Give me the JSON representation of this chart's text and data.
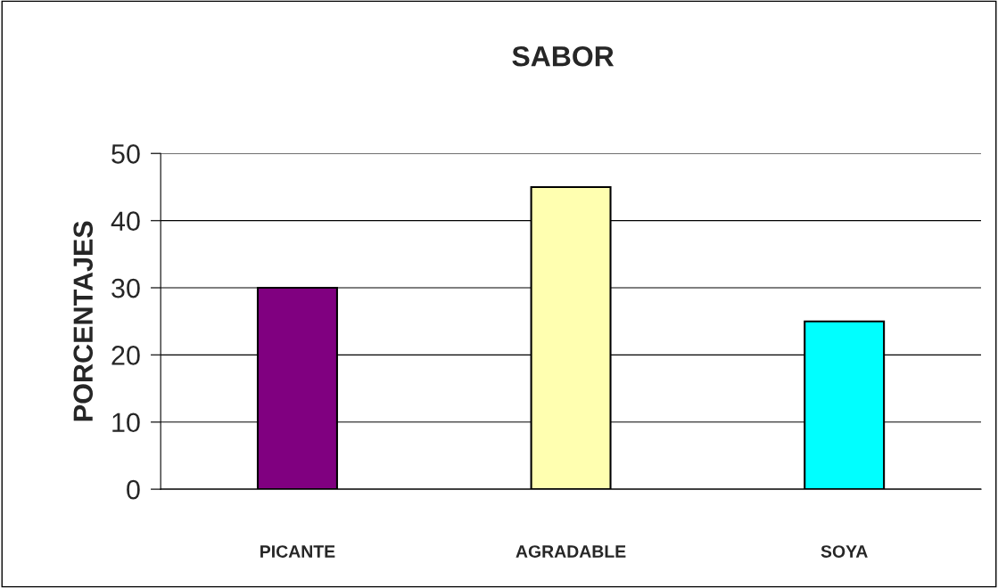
{
  "chart_data": {
    "type": "bar",
    "title": "SABOR",
    "ylabel": "PORCENTAJES",
    "categories": [
      "PICANTE",
      "AGRADABLE",
      "SOYA"
    ],
    "values": [
      30,
      45,
      25
    ],
    "colors": [
      "#800080",
      "#ffffb0",
      "#00ffff"
    ],
    "ylim": [
      0,
      50
    ],
    "yticks": [
      0,
      10,
      20,
      30,
      40,
      50
    ],
    "grid": "y"
  }
}
